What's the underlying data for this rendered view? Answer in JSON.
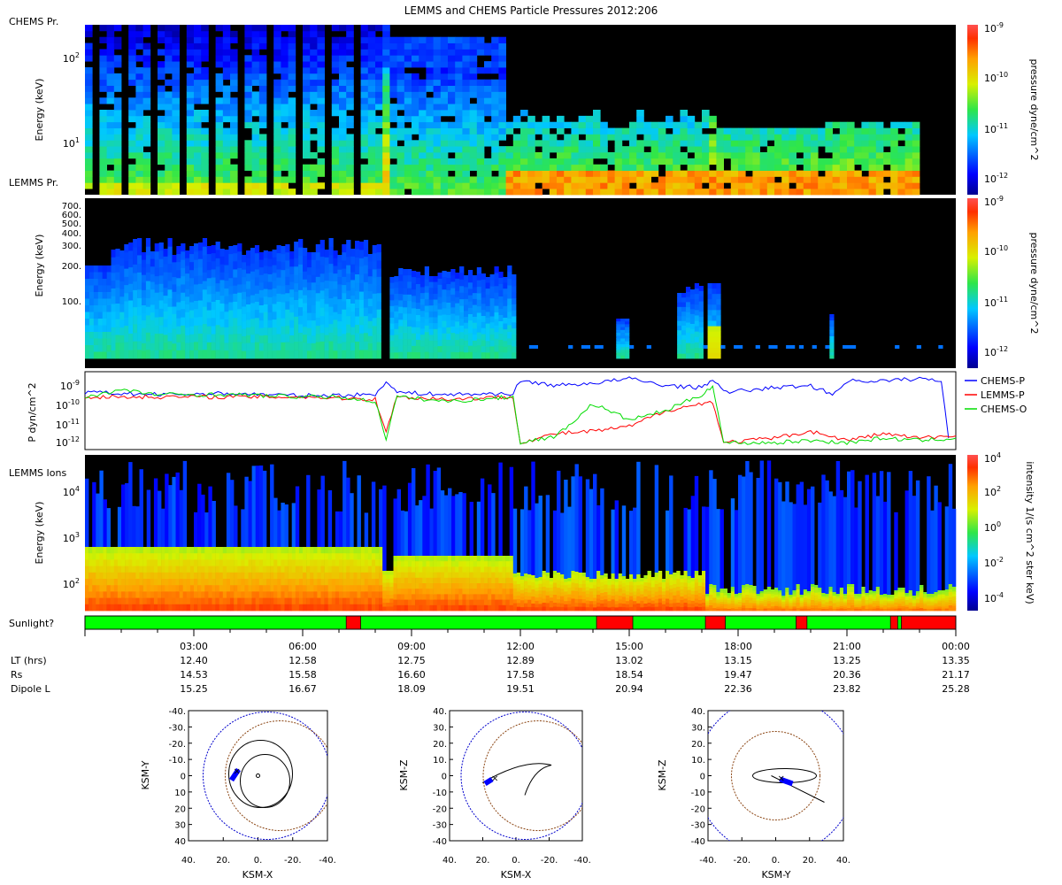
{
  "title": "LEMMS and CHEMS Particle Pressures  2012:206",
  "panels": {
    "chems": {
      "label": "CHEMS Pr.",
      "ylabel": "Energy (keV)",
      "yticks": [
        "10^1",
        "10^2"
      ],
      "cbar_label": "pressure dyne/cm^2",
      "cbar_ticks": [
        "10^-9",
        "10^-10",
        "10^-11",
        "10^-12"
      ]
    },
    "lemms_pr": {
      "label": "LEMMS Pr.",
      "ylabel": "Energy (keV)",
      "yticks": [
        "700.",
        "600.",
        "500.",
        "400.",
        "300.",
        "200.",
        "100."
      ],
      "cbar_label": "pressure dyne/cm^2",
      "cbar_ticks": [
        "10^-9",
        "10^-10",
        "10^-11",
        "10^-12"
      ]
    },
    "pressure": {
      "ylabel": "P dyn/cm^2",
      "yticks": [
        "10^-9",
        "10^-10",
        "10^-11",
        "10^-12"
      ],
      "legend": [
        {
          "name": "CHEMS-P",
          "color": "#0000ff"
        },
        {
          "name": "LEMMS-P",
          "color": "#ff0000"
        },
        {
          "name": "CHEMS-O",
          "color": "#00dd00"
        }
      ]
    },
    "lemms_ions": {
      "label": "LEMMS Ions",
      "ylabel": "Energy (keV)",
      "yticks": [
        "10^2",
        "10^3",
        "10^4"
      ],
      "cbar_label": "intensity 1/(s cm^2 ster keV)",
      "cbar_ticks": [
        "10^4",
        "10^2",
        "10^0",
        "10^-2",
        "10^-4"
      ]
    },
    "sunlight": {
      "label": "Sunlight?",
      "segments": [
        {
          "start": 0.0,
          "end": 7.2,
          "state": "sun"
        },
        {
          "start": 7.2,
          "end": 7.6,
          "state": "shadow"
        },
        {
          "start": 7.6,
          "end": 14.1,
          "state": "sun"
        },
        {
          "start": 14.1,
          "end": 15.1,
          "state": "shadow"
        },
        {
          "start": 15.1,
          "end": 17.1,
          "state": "sun"
        },
        {
          "start": 17.1,
          "end": 17.65,
          "state": "shadow"
        },
        {
          "start": 17.65,
          "end": 19.6,
          "state": "sun"
        },
        {
          "start": 19.6,
          "end": 19.9,
          "state": "shadow"
        },
        {
          "start": 19.9,
          "end": 22.2,
          "state": "sun"
        },
        {
          "start": 22.2,
          "end": 22.4,
          "state": "shadow"
        },
        {
          "start": 22.4,
          "end": 22.5,
          "state": "sun"
        },
        {
          "start": 22.5,
          "end": 24.0,
          "state": "shadow"
        }
      ]
    }
  },
  "time_axis": {
    "row_labels": [
      "LT (hrs)",
      "Rs",
      "Dipole L"
    ],
    "ticks": [
      {
        "hour": 3,
        "label": "03:00",
        "lt": "12.40",
        "rs": "14.53",
        "l": "15.25"
      },
      {
        "hour": 6,
        "label": "06:00",
        "lt": "12.58",
        "rs": "15.58",
        "l": "16.67"
      },
      {
        "hour": 9,
        "label": "09:00",
        "lt": "12.75",
        "rs": "16.60",
        "l": "18.09"
      },
      {
        "hour": 12,
        "label": "12:00",
        "lt": "12.89",
        "rs": "17.58",
        "l": "19.51"
      },
      {
        "hour": 15,
        "label": "15:00",
        "lt": "13.02",
        "rs": "18.54",
        "l": "20.94"
      },
      {
        "hour": 18,
        "label": "18:00",
        "lt": "13.15",
        "rs": "19.47",
        "l": "22.36"
      },
      {
        "hour": 21,
        "label": "21:00",
        "lt": "13.25",
        "rs": "20.36",
        "l": "23.82"
      },
      {
        "hour": 24,
        "label": "00:00",
        "lt": "13.35",
        "rs": "21.17",
        "l": "25.28"
      }
    ]
  },
  "orbits": [
    {
      "xlabel": "KSM-X",
      "ylabel": "KSM-Y",
      "xticks": [
        "40.",
        "20.",
        "0.",
        "-20.",
        "-40."
      ],
      "yticks": [
        "-40.",
        "-30.",
        "-20.",
        "-10.",
        "0",
        "10",
        "20",
        "30",
        "40"
      ]
    },
    {
      "xlabel": "KSM-X",
      "ylabel": "KSM-Z",
      "xticks": [
        "40.",
        "20.",
        "0.",
        "-20.",
        "-40."
      ],
      "yticks": [
        "40.",
        "30.",
        "20.",
        "10.",
        "0",
        "-10",
        "-20",
        "-30",
        "-40"
      ]
    },
    {
      "xlabel": "KSM-Y",
      "ylabel": "KSM-Z",
      "xticks": [
        "-40.",
        "-20.",
        "0.",
        "20.",
        "40."
      ],
      "yticks": [
        "40.",
        "30.",
        "20.",
        "10.",
        "0",
        "-10",
        "-20",
        "-30",
        "-40"
      ]
    }
  ],
  "chart_data": {
    "type": "heatmap",
    "title": "LEMMS and CHEMS Particle Pressures  2012:206",
    "x_range_hours": [
      0,
      24
    ],
    "series_pressure": [
      {
        "name": "CHEMS-P",
        "color": "#0000ff",
        "points": [
          [
            0,
            -9.8
          ],
          [
            2,
            -9.9
          ],
          [
            4,
            -9.85
          ],
          [
            6,
            -9.95
          ],
          [
            8,
            -9.9
          ],
          [
            8.3,
            -9.3
          ],
          [
            8.6,
            -9.8
          ],
          [
            10,
            -9.9
          ],
          [
            11.8,
            -9.85
          ],
          [
            12,
            -9.3
          ],
          [
            13,
            -9.5
          ],
          [
            14,
            -9.4
          ],
          [
            15,
            -9.2
          ],
          [
            16,
            -9.5
          ],
          [
            17,
            -9.6
          ],
          [
            17.3,
            -9.2
          ],
          [
            17.6,
            -9.8
          ],
          [
            19,
            -9.6
          ],
          [
            20,
            -9.5
          ],
          [
            20.6,
            -9.9
          ],
          [
            21,
            -9.3
          ],
          [
            22,
            -9.3
          ],
          [
            23,
            -9.2
          ],
          [
            23.6,
            -9.3
          ],
          [
            23.8,
            -11.8
          ]
        ]
      },
      {
        "name": "LEMMS-P",
        "color": "#ff0000",
        "points": [
          [
            0,
            -10.0
          ],
          [
            2,
            -10.0
          ],
          [
            4,
            -10.0
          ],
          [
            6,
            -10.0
          ],
          [
            8,
            -10.1
          ],
          [
            8.3,
            -11.5
          ],
          [
            8.6,
            -10.0
          ],
          [
            10,
            -10.1
          ],
          [
            11.8,
            -10.0
          ],
          [
            12,
            -12.0
          ],
          [
            13,
            -11.6
          ],
          [
            14,
            -11.5
          ],
          [
            15,
            -11.3
          ],
          [
            16,
            -10.6
          ],
          [
            17,
            -10.3
          ],
          [
            17.3,
            -10.2
          ],
          [
            17.6,
            -12.0
          ],
          [
            19,
            -11.8
          ],
          [
            20,
            -11.5
          ],
          [
            21,
            -11.9
          ],
          [
            22,
            -11.6
          ],
          [
            23,
            -11.8
          ],
          [
            24,
            -11.7
          ]
        ]
      },
      {
        "name": "CHEMS-O",
        "color": "#00dd00",
        "points": [
          [
            0,
            -10.0
          ],
          [
            1,
            -9.7
          ],
          [
            2,
            -9.9
          ],
          [
            4,
            -9.9
          ],
          [
            6,
            -10.0
          ],
          [
            7,
            -10.0
          ],
          [
            8,
            -10.2
          ],
          [
            8.3,
            -11.8
          ],
          [
            8.6,
            -10.0
          ],
          [
            10,
            -10.2
          ],
          [
            11.8,
            -10.0
          ],
          [
            12,
            -12.0
          ],
          [
            13,
            -11.7
          ],
          [
            14,
            -10.3
          ],
          [
            15,
            -11.0
          ],
          [
            16,
            -10.6
          ],
          [
            17,
            -9.9
          ],
          [
            17.3,
            -9.5
          ],
          [
            17.6,
            -12.0
          ],
          [
            19,
            -12.0
          ],
          [
            20,
            -11.9
          ],
          [
            21,
            -12.0
          ],
          [
            22,
            -11.8
          ],
          [
            23,
            -11.9
          ],
          [
            24,
            -11.8
          ]
        ]
      }
    ],
    "pressure_ylim_log10": [
      -12.3,
      -8.9
    ]
  }
}
